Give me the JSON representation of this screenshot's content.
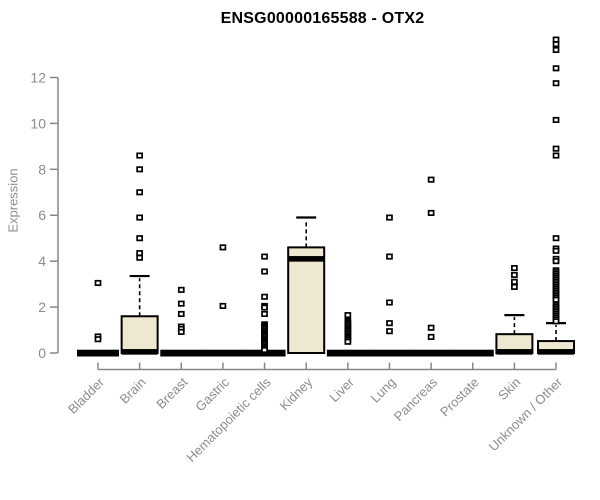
{
  "chart_data": {
    "type": "boxplot",
    "title": "ENSG00000165588 - OTX2",
    "ylabel": "Expression",
    "xlabel": "",
    "yticks": [
      0,
      2,
      4,
      6,
      8,
      10,
      12
    ],
    "ylim": [
      0,
      13.8
    ],
    "grid": false,
    "legend": "none",
    "box_fill": "#EDE8CF",
    "box_stroke": "#000000",
    "axis_color": "#888888",
    "text_color": "#8C8C8C",
    "title_color": "#000000",
    "categories": [
      "Bladder",
      "Brain",
      "Breast",
      "Gastric",
      "Hematopoietic cells",
      "Kidney",
      "Liver",
      "Lung",
      "Pancreas",
      "Prostate",
      "Skin",
      "Unknown / Other"
    ],
    "boxes": [
      {
        "category": "Bladder",
        "q1": 0,
        "median": 0,
        "q3": 0,
        "whisker_low": 0,
        "whisker_high": 0,
        "outliers": [
          3.05,
          0.72,
          0.6
        ]
      },
      {
        "category": "Brain",
        "q1": 0,
        "median": 0.05,
        "q3": 1.6,
        "whisker_low": 0,
        "whisker_high": 3.35,
        "outliers": [
          8.6,
          8.0,
          7.0,
          5.9,
          5.0,
          4.35,
          4.15
        ]
      },
      {
        "category": "Breast",
        "q1": 0,
        "median": 0,
        "q3": 0,
        "whisker_low": 0,
        "whisker_high": 0,
        "outliers": [
          2.75,
          2.15,
          1.7,
          1.15,
          1.05,
          0.92
        ]
      },
      {
        "category": "Gastric",
        "q1": 0,
        "median": 0,
        "q3": 0,
        "whisker_low": 0,
        "whisker_high": 0,
        "outliers": [
          4.6,
          2.05
        ]
      },
      {
        "category": "Hematopoietic cells",
        "q1": 0,
        "median": 0,
        "q3": 0,
        "whisker_low": 0,
        "whisker_high": 0,
        "outliers": [
          4.2,
          3.55,
          2.45,
          2.05,
          1.98,
          1.7,
          1.25,
          1.18,
          1.11,
          1.04,
          0.97,
          0.9,
          0.83,
          0.76,
          0.69,
          0.62,
          0.55,
          0.48,
          0.41,
          0.34,
          0.27,
          0.2,
          0.13
        ]
      },
      {
        "category": "Kidney",
        "q1": 0,
        "median": 4.1,
        "q3": 4.6,
        "whisker_low": 0,
        "whisker_high": 5.9,
        "outliers": []
      },
      {
        "category": "Liver",
        "q1": 0,
        "median": 0,
        "q3": 0,
        "whisker_low": 0,
        "whisker_high": 0,
        "outliers": [
          1.65,
          1.4,
          1.33,
          1.26,
          1.19,
          1.12,
          1.05,
          0.98,
          0.91,
          0.84,
          0.77,
          0.7,
          0.63,
          0.56,
          0.49
        ]
      },
      {
        "category": "Lung",
        "q1": 0,
        "median": 0,
        "q3": 0,
        "whisker_low": 0,
        "whisker_high": 0,
        "outliers": [
          5.9,
          4.2,
          2.2,
          1.3,
          0.95
        ]
      },
      {
        "category": "Pancreas",
        "q1": 0,
        "median": 0,
        "q3": 0,
        "whisker_low": 0,
        "whisker_high": 0,
        "outliers": [
          7.55,
          6.1,
          1.1,
          0.7
        ]
      },
      {
        "category": "Prostate",
        "q1": 0,
        "median": 0,
        "q3": 0,
        "whisker_low": 0,
        "whisker_high": 0,
        "outliers": []
      },
      {
        "category": "Skin",
        "q1": 0,
        "median": 0.05,
        "q3": 0.82,
        "whisker_low": 0,
        "whisker_high": 1.65,
        "outliers": [
          3.7,
          3.4,
          3.1,
          2.88
        ]
      },
      {
        "category": "Unknown / Other",
        "q1": 0,
        "median": 0.05,
        "q3": 0.52,
        "whisker_low": 0,
        "whisker_high": 1.3,
        "outliers": [
          13.65,
          13.45,
          13.2,
          12.4,
          11.75,
          10.15,
          8.9,
          8.6,
          5.0,
          4.55,
          4.45,
          4.1,
          4.0,
          3.6,
          3.52,
          3.44,
          3.36,
          3.28,
          3.2,
          3.12,
          3.04,
          2.96,
          2.88,
          2.8,
          2.72,
          2.64,
          2.56,
          2.48,
          2.4,
          2.32,
          2.1,
          2.02,
          1.94,
          1.86,
          1.78,
          1.7,
          1.62,
          1.54,
          1.46,
          1.38
        ]
      }
    ]
  }
}
